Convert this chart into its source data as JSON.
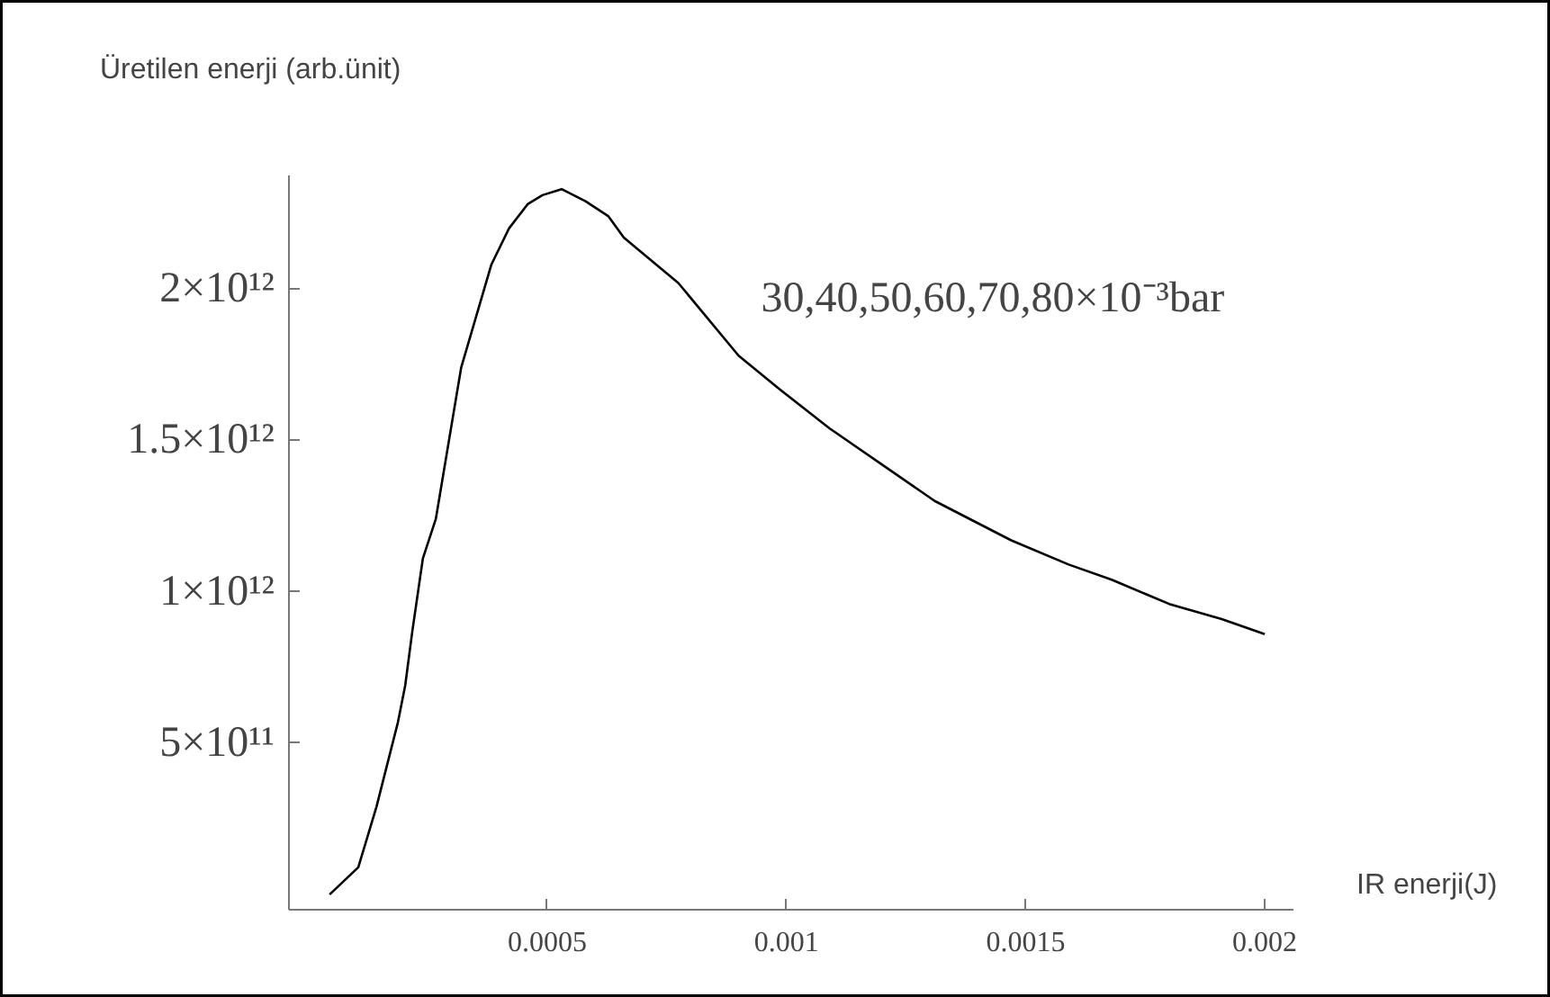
{
  "chart_data": {
    "type": "line",
    "xlabel": "IR enerji(J)",
    "ylabel": "Üretilen enerji (arb.ünit)",
    "annotations": [
      "30,40,50,60,70,80×10⁻³bar"
    ],
    "x": [
      4.5e-05,
      0.000105,
      0.000143,
      0.000188,
      0.000203,
      0.000218,
      0.00024,
      0.000267,
      0.00032,
      0.000383,
      0.00042,
      0.000459,
      0.00049,
      0.00053,
      0.00058,
      0.000628,
      0.00066,
      0.000774,
      0.0009,
      0.000985,
      0.00109,
      0.0012,
      0.00131,
      0.00147,
      0.00159,
      0.00168,
      0.0018,
      0.00191,
      0.002
    ],
    "series": [
      {
        "color": "#000000",
        "values": [
          0,
          90000000000.0,
          290000000000.0,
          570000000000.0,
          690000000000.0,
          870000000000.0,
          1110000000000.0,
          1240000000000.0,
          1740000000000.0,
          2080000000000.0,
          2200000000000.0,
          2280000000000.0,
          2310000000000.0,
          2330000000000.0,
          2290000000000.0,
          2240000000000.0,
          2170000000000.0,
          2020000000000.0,
          1780000000000.0,
          1670000000000.0,
          1540000000000.0,
          1420000000000.0,
          1300000000000.0,
          1170000000000.0,
          1090000000000.0,
          1040000000000.0,
          960000000000.0,
          910000000000.0,
          860000000000.0
        ]
      }
    ],
    "xlim": [
      -4e-05,
      0.00206
    ],
    "ylim": [
      -50000000000.0,
      2375000000000.0
    ],
    "xticks": [
      0.0005,
      0.001,
      0.0015,
      0.002
    ],
    "yticks": [
      {
        "value": 500000000000.0,
        "label": "5×10¹¹"
      },
      {
        "value": 1000000000000.0,
        "label": "1×10¹²"
      },
      {
        "value": 1500000000000.0,
        "label": "1.5×10¹²"
      },
      {
        "value": 2000000000000.0,
        "label": "2×10¹²"
      }
    ],
    "grid": false,
    "marker": "none",
    "line_style": "solid"
  }
}
